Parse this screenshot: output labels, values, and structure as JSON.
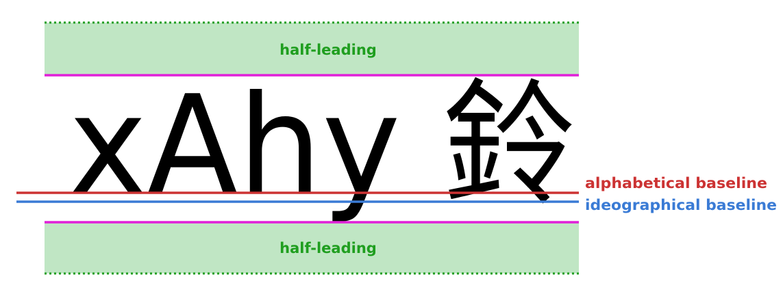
{
  "sample_text": "xAhy 鈴",
  "half_leading_top": "half-leading",
  "half_leading_bottom": "half-leading",
  "alphabetical_baseline_label": "alphabetical baseline",
  "ideographical_baseline_label": "ideographical baseline",
  "colors": {
    "half_leading_fill": "#c0e6c4",
    "half_leading_text": "#1f9e1f",
    "dotted_border": "#1f9e1f",
    "line_box_edge": "#e020d8",
    "alphabetical_baseline": "#cc3333",
    "ideographical_baseline": "#3a7bd5",
    "glyph_fill": "#000000"
  }
}
